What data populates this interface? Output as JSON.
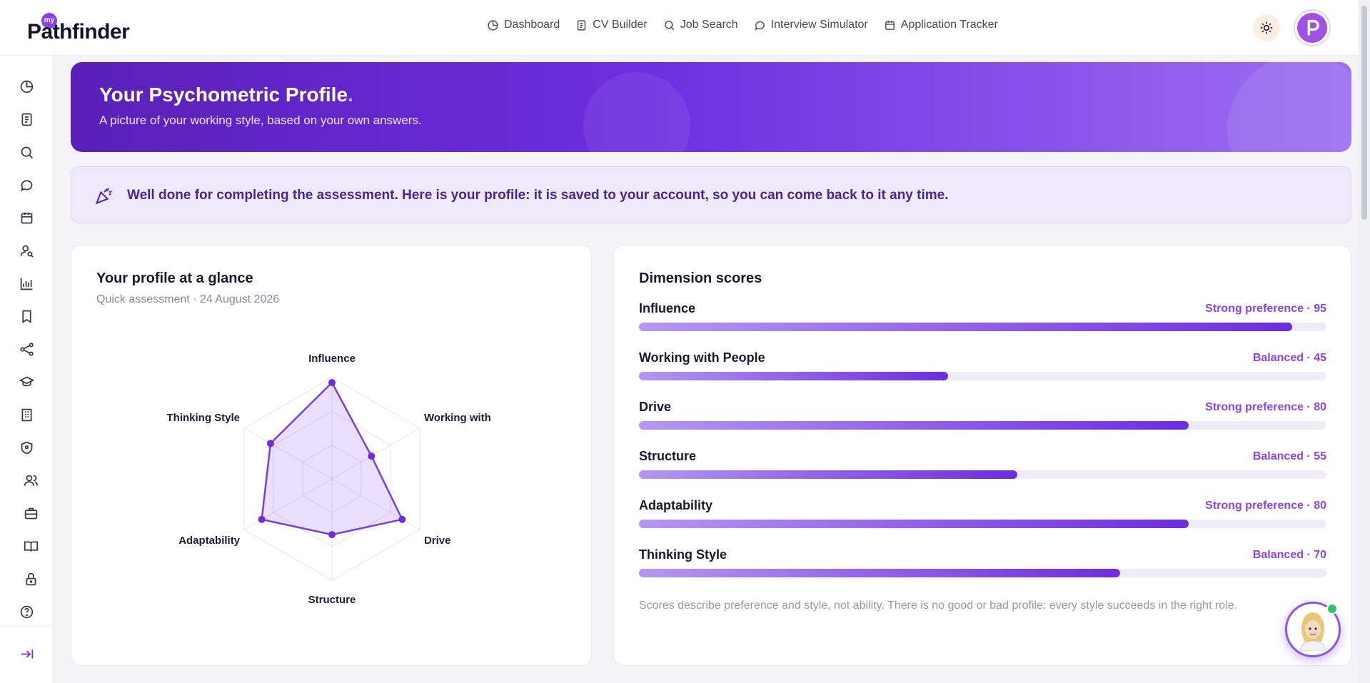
{
  "brand": {
    "badge": "my",
    "name": "Pathfinder"
  },
  "nav": [
    {
      "label": "Dashboard",
      "icon": "pie-chart-icon"
    },
    {
      "label": "CV Builder",
      "icon": "document-icon"
    },
    {
      "label": "Job Search",
      "icon": "search-icon"
    },
    {
      "label": "Interview Simulator",
      "icon": "chat-icon"
    },
    {
      "label": "Application Tracker",
      "icon": "calendar-icon"
    }
  ],
  "hero": {
    "title": "Your Psychometric Profile",
    "title_dot": ".",
    "subtitle": "A picture of your working style, based on your own answers."
  },
  "notice": {
    "text": "Well done for completing the assessment. Here is your profile: it is saved to your account, so you can come back to it any time."
  },
  "glance": {
    "title": "Your profile at a glance",
    "subtitle": "Quick assessment · 24 August 2026"
  },
  "scores": {
    "title": "Dimension scores",
    "disclaimer": "Scores describe preference and style, not ability. There is no good or bad profile: every style succeeds in the right role."
  },
  "chart_data": {
    "type": "radar",
    "axes": [
      "Influence",
      "Working with People",
      "Drive",
      "Structure",
      "Adaptability",
      "Thinking Style"
    ],
    "values": [
      95,
      45,
      80,
      55,
      80,
      70
    ],
    "levels": [
      "Strong preference",
      "Balanced",
      "Strong preference",
      "Balanced",
      "Strong preference",
      "Balanced"
    ],
    "range": [
      0,
      100
    ]
  },
  "colors": {
    "accent": "#6f2be0",
    "accent_light": "#b597f2",
    "hero_start": "#5b1fb8",
    "hero_end": "#9d6ff2"
  }
}
